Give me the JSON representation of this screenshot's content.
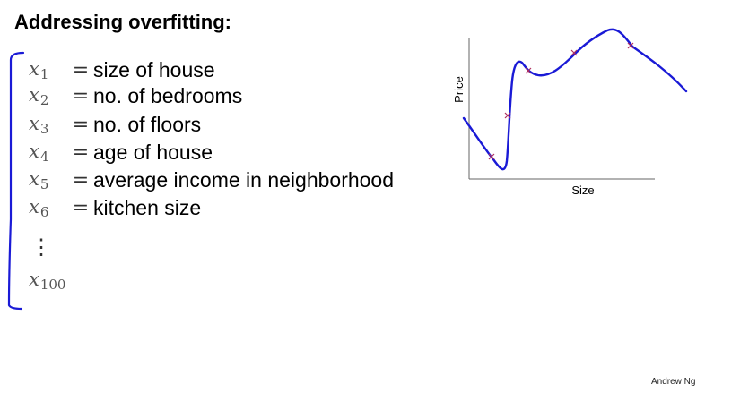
{
  "slide": {
    "title": "Addressing overfitting:",
    "features": [
      {
        "var": "x",
        "sub": "1",
        "eq": "=",
        "desc": "size of house"
      },
      {
        "var": "x",
        "sub": "2",
        "eq": "=",
        "desc": "no. of bedrooms"
      },
      {
        "var": "x",
        "sub": "3",
        "eq": "=",
        "desc": "no. of floors"
      },
      {
        "var": "x",
        "sub": "4",
        "eq": "=",
        "desc": "age of house"
      },
      {
        "var": "x",
        "sub": "5",
        "eq": "=",
        "desc": "average income in neighborhood"
      },
      {
        "var": "x",
        "sub": "6",
        "eq": "=",
        "desc": "kitchen size"
      }
    ],
    "ellipsis": "⋮",
    "last_feature": {
      "var": "x",
      "sub": "100"
    },
    "plot": {
      "xlabel": "Size",
      "ylabel": "Price"
    },
    "credit": "Andrew Ng"
  },
  "colors": {
    "curve": "#1a1ad6",
    "marker": "#b03060",
    "bracket": "#1a1ad6"
  }
}
